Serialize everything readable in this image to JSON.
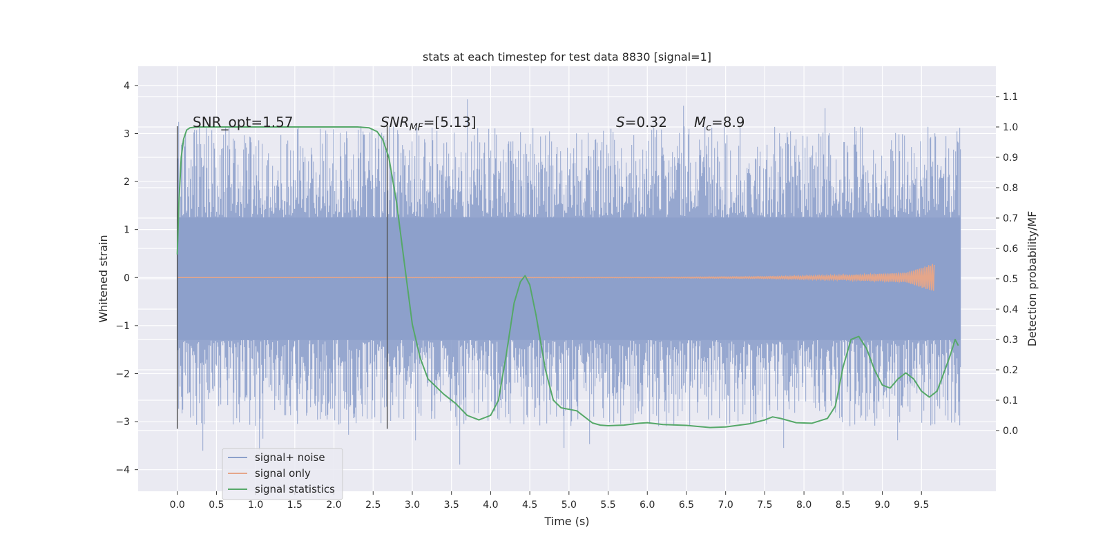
{
  "chart_data": {
    "type": "line",
    "title": "stats at each timestep for test data 8830 [signal=1]",
    "xlabel": "Time (s)",
    "ylabel_left": "Whitened strain",
    "ylabel_right": "Detection probability/MF",
    "xlim": [
      -0.5,
      10.45
    ],
    "ylim_left": [
      -4.45,
      4.4
    ],
    "ylim_right": [
      -0.2,
      1.2
    ],
    "xticks": [
      "0.0",
      "0.5",
      "1.0",
      "1.5",
      "2.0",
      "2.5",
      "3.0",
      "3.5",
      "4.0",
      "4.5",
      "5.0",
      "5.5",
      "6.0",
      "6.5",
      "7.0",
      "7.5",
      "8.0",
      "8.5",
      "9.0",
      "9.5"
    ],
    "yticks_left": [
      "4",
      "3",
      "2",
      "1",
      "0",
      "−1",
      "−2",
      "−3",
      "−4"
    ],
    "yticks_right": [
      "1.1",
      "1.0",
      "0.9",
      "0.8",
      "0.7",
      "0.6",
      "0.5",
      "0.4",
      "0.3",
      "0.2",
      "0.1",
      "0.0"
    ],
    "grid": true,
    "legend_position": "lower-left",
    "legend": [
      "signal+ noise",
      "signal only",
      "signal statistics"
    ],
    "colors": {
      "noise": "#8da0cb",
      "signal": "#e5a68a",
      "stats": "#55a868",
      "vline": "#555555",
      "background": "#eaeaf2",
      "grid": "#ffffff"
    },
    "annotations": {
      "snr_opt": "SNR_opt=1.57",
      "snr_mf_main": "SNR",
      "snr_mf_sub": "MF",
      "snr_mf_rest": "=[5.13]",
      "s_sym": "S",
      "s_val": "=0.32",
      "mc_sym": "M",
      "mc_sub": "c",
      "mc_val": "=8.9"
    },
    "vertical_lines_x": [
      0.0,
      2.68
    ],
    "vertical_lines_yrange": [
      -3.15,
      3.15
    ],
    "series": [
      {
        "name": "signal+ noise",
        "x_range": [
          0.0,
          10.0
        ],
        "approx_envelope": {
          "core": [
            -1.3,
            1.25
          ],
          "spike_max": 4.0,
          "spike_min": -4.05
        }
      },
      {
        "name": "signal only",
        "x_range": [
          0.0,
          9.67
        ],
        "amplitude_points": [
          [
            0.0,
            0.0
          ],
          [
            6.0,
            0.005
          ],
          [
            7.5,
            0.02
          ],
          [
            8.5,
            0.05
          ],
          [
            9.3,
            0.1
          ],
          [
            9.67,
            0.3
          ]
        ]
      },
      {
        "name": "signal statistics",
        "x": [
          0.0,
          0.02,
          0.05,
          0.08,
          0.12,
          0.16,
          0.25,
          0.5,
          1.0,
          1.5,
          2.0,
          2.3,
          2.45,
          2.55,
          2.62,
          2.7,
          2.8,
          2.9,
          3.0,
          3.1,
          3.2,
          3.4,
          3.55,
          3.7,
          3.85,
          4.0,
          4.1,
          4.2,
          4.3,
          4.38,
          4.44,
          4.5,
          4.58,
          4.7,
          4.8,
          4.9,
          5.0,
          5.1,
          5.2,
          5.3,
          5.4,
          5.5,
          5.7,
          5.9,
          6.0,
          6.2,
          6.5,
          6.8,
          7.0,
          7.3,
          7.5,
          7.6,
          7.7,
          7.9,
          8.1,
          8.3,
          8.4,
          8.5,
          8.6,
          8.7,
          8.8,
          8.9,
          9.0,
          9.1,
          9.2,
          9.3,
          9.4,
          9.5,
          9.6,
          9.7,
          9.8,
          9.87,
          9.93,
          9.97
        ],
        "values": [
          0.58,
          0.75,
          0.9,
          0.96,
          0.99,
          0.997,
          1.0,
          1.0,
          1.0,
          1.0,
          1.0,
          1.0,
          0.997,
          0.985,
          0.96,
          0.9,
          0.75,
          0.55,
          0.35,
          0.24,
          0.17,
          0.12,
          0.09,
          0.05,
          0.035,
          0.05,
          0.1,
          0.25,
          0.42,
          0.49,
          0.51,
          0.48,
          0.38,
          0.2,
          0.1,
          0.075,
          0.07,
          0.065,
          0.045,
          0.025,
          0.018,
          0.016,
          0.018,
          0.024,
          0.026,
          0.02,
          0.017,
          0.01,
          0.012,
          0.022,
          0.035,
          0.045,
          0.04,
          0.026,
          0.024,
          0.04,
          0.08,
          0.21,
          0.3,
          0.31,
          0.27,
          0.2,
          0.15,
          0.14,
          0.17,
          0.19,
          0.17,
          0.13,
          0.11,
          0.13,
          0.2,
          0.25,
          0.3,
          0.28
        ]
      }
    ]
  }
}
